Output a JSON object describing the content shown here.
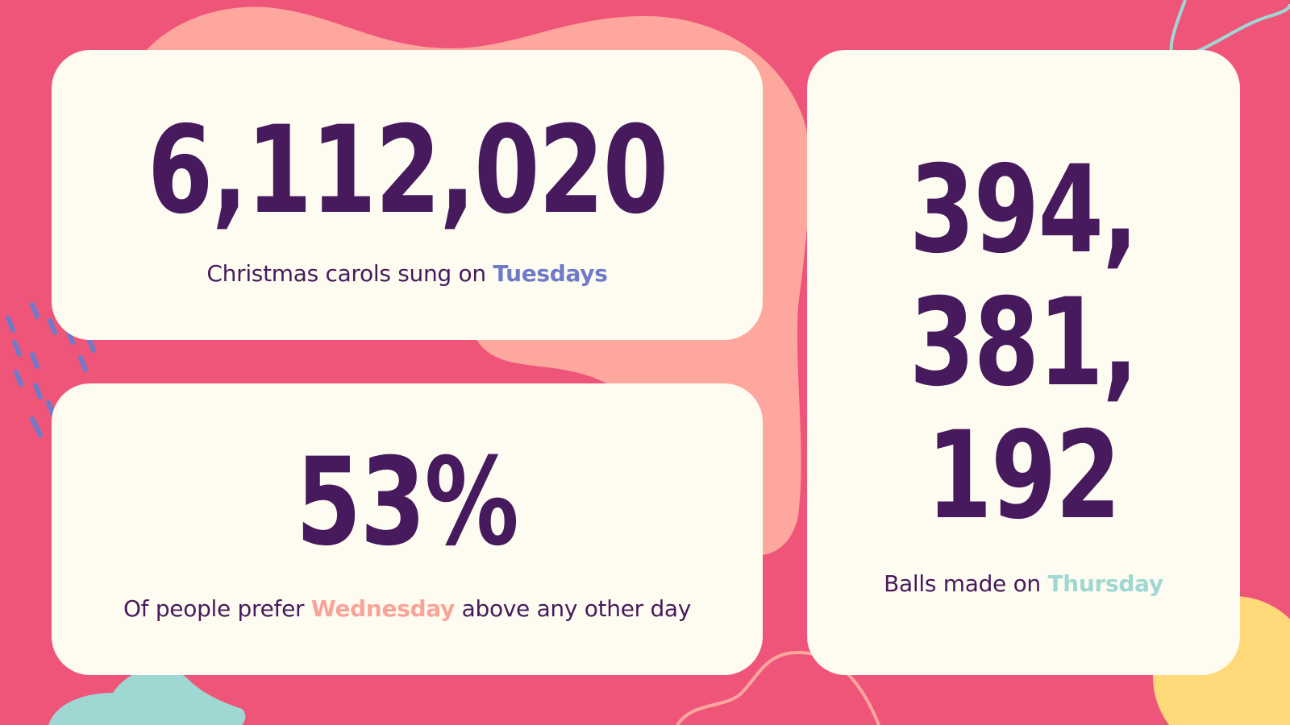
{
  "colors": {
    "background": "#ef5579",
    "card": "#fefcf0",
    "number": "#461a5c",
    "tuesday_highlight": "#6f7bc9",
    "wednesday_highlight": "#f9a49a",
    "thursday_highlight": "#9fd8d3"
  },
  "stats": [
    {
      "value": "6,112,020",
      "caption_before": "Christmas carols sung on",
      "highlight": "Tuesdays",
      "caption_after": ""
    },
    {
      "value": "53%",
      "caption_before": "Of people prefer",
      "highlight": "Wednesday",
      "caption_after": "above any other day"
    },
    {
      "value_lines": [
        "394,",
        "381,",
        "192"
      ],
      "caption_before": "Balls made on",
      "highlight": "Thursday",
      "caption_after": ""
    }
  ]
}
